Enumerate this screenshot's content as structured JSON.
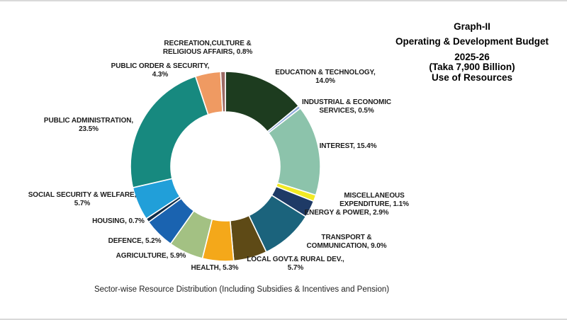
{
  "title_block": {
    "lines": [
      "Graph-II",
      "Operating & Development Budget",
      "2025-26",
      "(Taka 7,900 Billion)",
      "Use of Resources"
    ]
  },
  "caption": "Sector-wise Resource Distribution (Including Subsidies & Incentives and Pension)",
  "chart_data": {
    "type": "pie",
    "subtype": "donut",
    "title": "Operating & Development Budget 2025-26 (Taka 7,900 Billion) Use of Resources",
    "caption": "Sector-wise Resource Distribution (Including Subsidies & Incentives and Pension)",
    "unit": "%",
    "total": 100.0,
    "start_angle_deg": 0,
    "direction": "clockwise",
    "inner_radius_ratio": 0.575,
    "legend": "none",
    "slice_separator_color": "#ffffff",
    "slices": [
      {
        "id": "education-technology",
        "label": "EDUCATION & TECHNOLOGY",
        "value": 14.0,
        "color": "#1d3c1f",
        "label_lines": [
          "EDUCATION  & TECHNOLOGY,",
          "14.0%"
        ]
      },
      {
        "id": "industrial-economic-services",
        "label": "INDUSTRIAL & ECONOMIC SERVICES",
        "value": 0.5,
        "color": "#8faadc",
        "label_lines": [
          "INDUSTRIAL & ECONOMIC",
          "SERVICES, 0.5%"
        ]
      },
      {
        "id": "interest",
        "label": "INTEREST",
        "value": 15.4,
        "color": "#8cc3ab",
        "label_lines": [
          "INTEREST, 15.4%"
        ]
      },
      {
        "id": "miscellaneous-expenditure",
        "label": "MISCELLANEOUS EXPENDITURE",
        "value": 1.1,
        "color": "#f2ea24",
        "label_lines": [
          "MISCELLANEOUS",
          "EXPENDITURE, 1.1%"
        ]
      },
      {
        "id": "energy-power",
        "label": "ENERGY & POWER",
        "value": 2.9,
        "color": "#1e3a66",
        "label_lines": [
          "ENERGY & POWER, 2.9%"
        ]
      },
      {
        "id": "transport-communication",
        "label": "TRANSPORT & COMMUNICATION",
        "value": 9.0,
        "color": "#1b637c",
        "label_lines": [
          "TRANSPORT  &",
          "COMMUNICATION, 9.0%"
        ]
      },
      {
        "id": "local-govt-rural-dev",
        "label": "LOCAL GOVT.& RURAL DEV.",
        "value": 5.7,
        "color": "#5e4a16",
        "label_lines": [
          "LOCAL GOVT.& RURAL DEV.,",
          "5.7%"
        ]
      },
      {
        "id": "health",
        "label": "HEALTH",
        "value": 5.3,
        "color": "#f4a81a",
        "label_lines": [
          "HEALTH, 5.3%"
        ]
      },
      {
        "id": "agriculture",
        "label": "AGRICULTURE",
        "value": 5.9,
        "color": "#a3c183",
        "label_lines": [
          "AGRICULTURE, 5.9%"
        ]
      },
      {
        "id": "defence",
        "label": "DEFENCE",
        "value": 5.2,
        "color": "#1a63b0",
        "label_lines": [
          "DEFENCE, 5.2%"
        ]
      },
      {
        "id": "housing",
        "label": "HOUSING",
        "value": 0.7,
        "color": "#102c47",
        "label_lines": [
          "HOUSING, 0.7%"
        ]
      },
      {
        "id": "social-security-welfare",
        "label": "SOCIAL SECURITY & WELFARE",
        "value": 5.7,
        "color": "#219fd9",
        "label_lines": [
          "SOCIAL SECURITY & WELFARE,",
          "5.7%"
        ]
      },
      {
        "id": "public-administration",
        "label": "PUBLIC ADMINISTRATION",
        "value": 23.5,
        "color": "#17897f",
        "label_lines": [
          "PUBLIC ADMINISTRATION,",
          "23.5%"
        ]
      },
      {
        "id": "public-order-security",
        "label": "PUBLIC ORDER & SECURITY",
        "value": 4.3,
        "color": "#ef9a62",
        "label_lines": [
          "PUBLIC ORDER & SECURITY,",
          "4.3%"
        ]
      },
      {
        "id": "recreation-culture-religious-affairs",
        "label": "RECREATION,CULTURE & RELIGIOUS AFFAIRS",
        "value": 0.8,
        "color": "#9c6a64",
        "label_lines": [
          "RECREATION,CULTURE &",
          "RELIGIOUS AFFAIRS, 0.8%"
        ]
      }
    ]
  }
}
